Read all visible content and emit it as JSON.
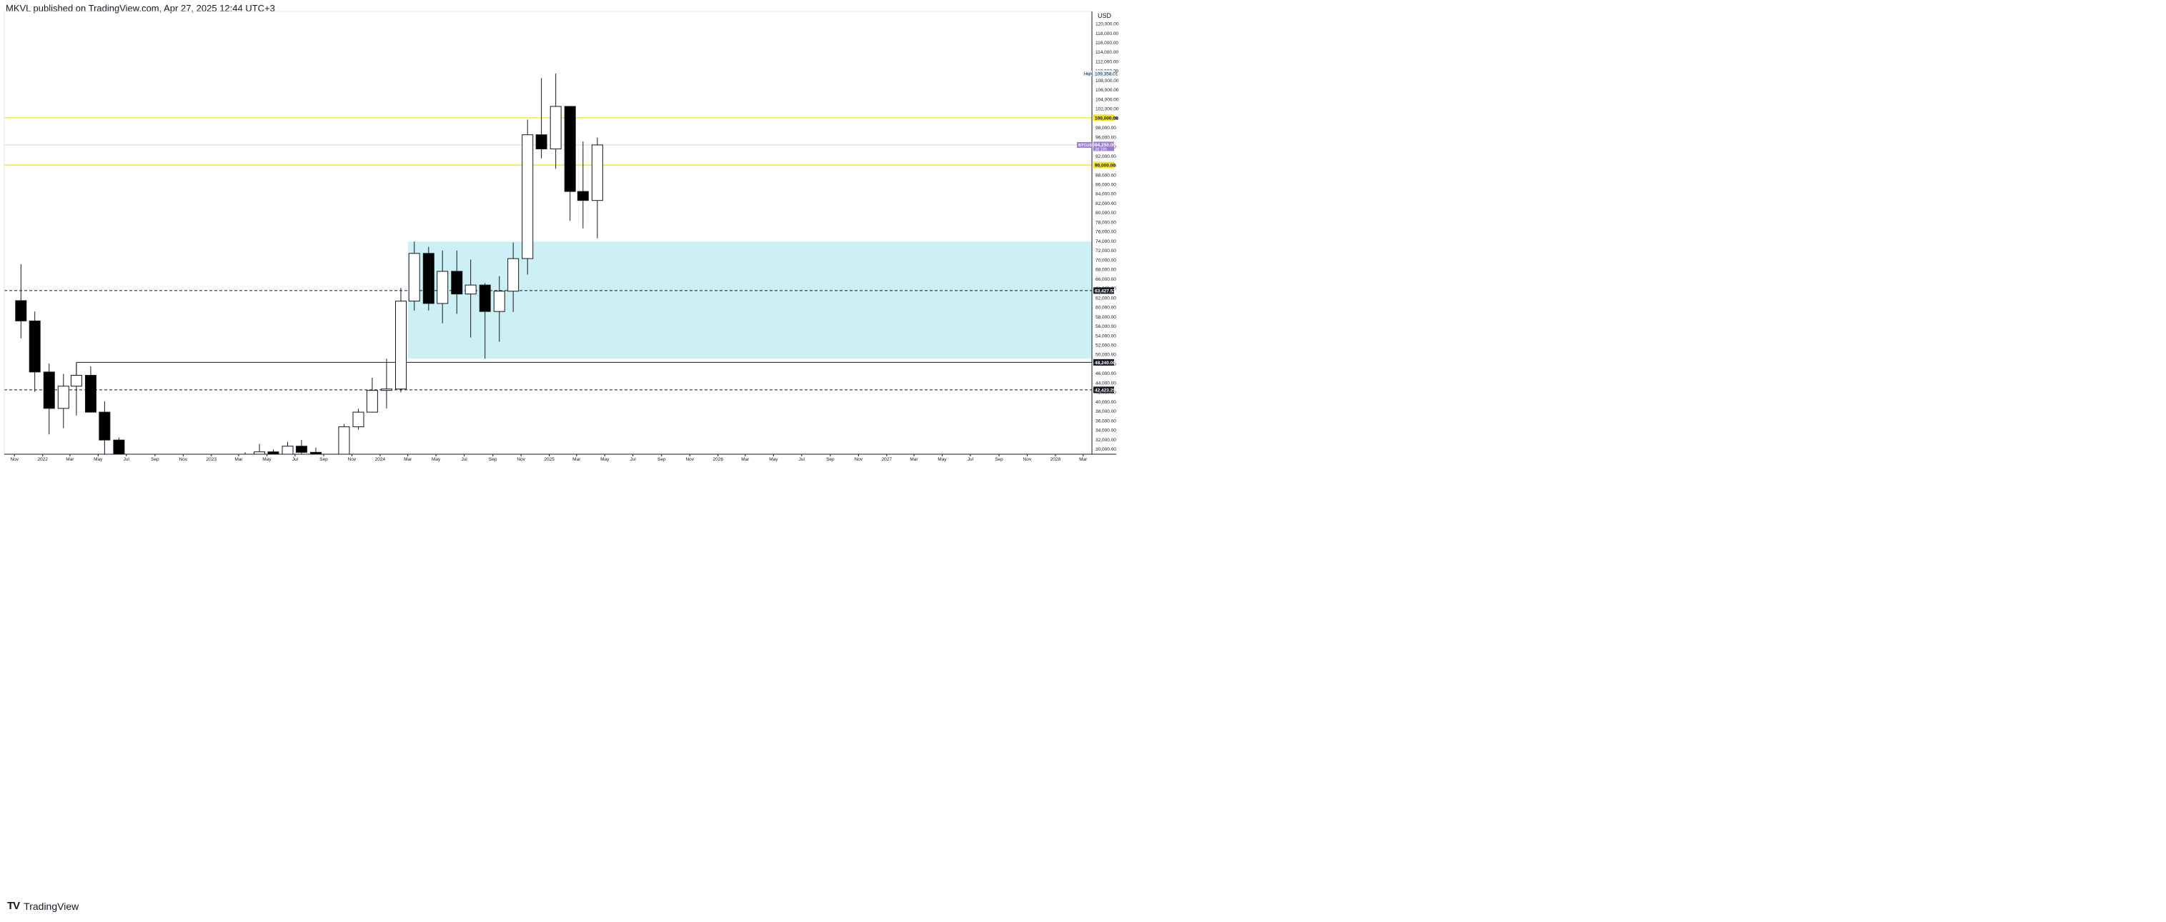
{
  "header": {
    "publisher_line": "MKVL published on TradingView.com, Apr 27, 2025 12:44 UTC+3"
  },
  "footer": {
    "logo_glyph": "TV",
    "brand": "TradingView"
  },
  "chart_data": {
    "type": "candlestick",
    "currency": "USD",
    "y_range": [
      28800,
      122500
    ],
    "x_range": [
      "2021-10-10",
      "2028-03-20"
    ],
    "price_axis_ticks": [
      30000,
      32000,
      34000,
      36000,
      38000,
      40000,
      42000,
      44000,
      46000,
      48000,
      50000,
      52000,
      54000,
      56000,
      58000,
      60000,
      62000,
      64000,
      66000,
      68000,
      70000,
      72000,
      74000,
      76000,
      78000,
      80000,
      82000,
      84000,
      86000,
      88000,
      90000,
      92000,
      94000,
      96000,
      98000,
      100000,
      102000,
      104000,
      106000,
      108000,
      110000,
      112000,
      114000,
      116000,
      118000,
      120000
    ],
    "time_axis_ticks": [
      {
        "date": "2021-11-01",
        "label": "Nov"
      },
      {
        "date": "2022-01-01",
        "label": "2022"
      },
      {
        "date": "2022-03-01",
        "label": "Mar"
      },
      {
        "date": "2022-05-01",
        "label": "May"
      },
      {
        "date": "2022-07-01",
        "label": "Jul"
      },
      {
        "date": "2022-09-01",
        "label": "Sep"
      },
      {
        "date": "2022-11-01",
        "label": "Nov"
      },
      {
        "date": "2023-01-01",
        "label": "2023"
      },
      {
        "date": "2023-03-01",
        "label": "Mar"
      },
      {
        "date": "2023-05-01",
        "label": "May"
      },
      {
        "date": "2023-07-01",
        "label": "Jul"
      },
      {
        "date": "2023-09-01",
        "label": "Sep"
      },
      {
        "date": "2023-11-01",
        "label": "Nov"
      },
      {
        "date": "2024-01-01",
        "label": "2024"
      },
      {
        "date": "2024-03-01",
        "label": "Mar"
      },
      {
        "date": "2024-05-01",
        "label": "May"
      },
      {
        "date": "2024-07-01",
        "label": "Jul"
      },
      {
        "date": "2024-09-01",
        "label": "Sep"
      },
      {
        "date": "2024-11-01",
        "label": "Nov"
      },
      {
        "date": "2025-01-01",
        "label": "2025"
      },
      {
        "date": "2025-03-01",
        "label": "Mar"
      },
      {
        "date": "2025-05-01",
        "label": "May"
      },
      {
        "date": "2025-07-01",
        "label": "Jul"
      },
      {
        "date": "2025-09-01",
        "label": "Sep"
      },
      {
        "date": "2025-11-01",
        "label": "Nov"
      },
      {
        "date": "2026-01-01",
        "label": "2026"
      },
      {
        "date": "2026-03-01",
        "label": "Mar"
      },
      {
        "date": "2026-05-01",
        "label": "May"
      },
      {
        "date": "2026-07-01",
        "label": "Jul"
      },
      {
        "date": "2026-09-01",
        "label": "Sep"
      },
      {
        "date": "2026-11-01",
        "label": "Nov"
      },
      {
        "date": "2027-01-01",
        "label": "2027"
      },
      {
        "date": "2027-03-01",
        "label": "Mar"
      },
      {
        "date": "2027-05-01",
        "label": "May"
      },
      {
        "date": "2027-07-01",
        "label": "Jul"
      },
      {
        "date": "2027-09-01",
        "label": "Sep"
      },
      {
        "date": "2027-11-01",
        "label": "Nov"
      },
      {
        "date": "2028-01-01",
        "label": "2028"
      },
      {
        "date": "2028-03-01",
        "label": "Mar"
      }
    ],
    "candles": [
      {
        "date": "2021-11-15",
        "open": 61300,
        "high": 69000,
        "low": 53300,
        "close": 57000
      },
      {
        "date": "2021-12-15",
        "open": 57000,
        "high": 59000,
        "low": 42000,
        "close": 46200
      },
      {
        "date": "2022-01-15",
        "open": 46200,
        "high": 48000,
        "low": 33000,
        "close": 38500
      },
      {
        "date": "2022-02-15",
        "open": 38500,
        "high": 45800,
        "low": 34300,
        "close": 43200
      },
      {
        "date": "2022-03-15",
        "open": 43200,
        "high": 48200,
        "low": 37000,
        "close": 45500
      },
      {
        "date": "2022-04-15",
        "open": 45500,
        "high": 47400,
        "low": 37700,
        "close": 37700
      },
      {
        "date": "2022-05-15",
        "open": 37700,
        "high": 40000,
        "low": 26700,
        "close": 31800
      },
      {
        "date": "2022-06-15",
        "open": 31800,
        "high": 32300,
        "low": 17600,
        "close": 19800
      },
      {
        "date": "2023-03-15",
        "open": 28000,
        "high": 29200,
        "low": 25000,
        "close": 28500
      },
      {
        "date": "2023-04-15",
        "open": 28500,
        "high": 31000,
        "low": 26900,
        "close": 29300
      },
      {
        "date": "2023-05-15",
        "open": 29300,
        "high": 29800,
        "low": 25800,
        "close": 27200
      },
      {
        "date": "2023-06-15",
        "open": 27200,
        "high": 31400,
        "low": 24800,
        "close": 30500
      },
      {
        "date": "2023-07-15",
        "open": 30500,
        "high": 31800,
        "low": 28900,
        "close": 29200
      },
      {
        "date": "2023-08-15",
        "open": 29200,
        "high": 30200,
        "low": 25400,
        "close": 26000
      },
      {
        "date": "2023-10-15",
        "open": 27000,
        "high": 35200,
        "low": 26500,
        "close": 34600
      },
      {
        "date": "2023-11-15",
        "open": 34600,
        "high": 38400,
        "low": 34000,
        "close": 37700
      },
      {
        "date": "2023-12-15",
        "open": 37700,
        "high": 45000,
        "low": 37600,
        "close": 42300
      },
      {
        "date": "2024-01-15",
        "open": 42300,
        "high": 49000,
        "low": 38500,
        "close": 42600
      },
      {
        "date": "2024-02-15",
        "open": 42600,
        "high": 64000,
        "low": 41900,
        "close": 61200
      },
      {
        "date": "2024-03-15",
        "open": 61200,
        "high": 73800,
        "low": 59200,
        "close": 71300
      },
      {
        "date": "2024-04-15",
        "open": 71300,
        "high": 72700,
        "low": 59200,
        "close": 60700
      },
      {
        "date": "2024-05-15",
        "open": 60700,
        "high": 71900,
        "low": 56500,
        "close": 67500
      },
      {
        "date": "2024-06-15",
        "open": 67500,
        "high": 71900,
        "low": 58500,
        "close": 62700
      },
      {
        "date": "2024-07-15",
        "open": 62700,
        "high": 70000,
        "low": 53500,
        "close": 64600
      },
      {
        "date": "2024-08-15",
        "open": 64600,
        "high": 65000,
        "low": 49000,
        "close": 59000
      },
      {
        "date": "2024-09-15",
        "open": 59000,
        "high": 66500,
        "low": 52600,
        "close": 63300
      },
      {
        "date": "2024-10-15",
        "open": 63300,
        "high": 73600,
        "low": 58900,
        "close": 70200
      },
      {
        "date": "2024-11-15",
        "open": 70200,
        "high": 99600,
        "low": 66800,
        "close": 96400
      },
      {
        "date": "2024-12-15",
        "open": 96400,
        "high": 108400,
        "low": 91400,
        "close": 93400
      },
      {
        "date": "2025-01-15",
        "open": 93400,
        "high": 109358,
        "low": 89200,
        "close": 102400
      },
      {
        "date": "2025-02-15",
        "open": 102400,
        "high": 102500,
        "low": 78200,
        "close": 84400
      },
      {
        "date": "2025-03-15",
        "open": 84400,
        "high": 95000,
        "low": 76600,
        "close": 82500
      },
      {
        "date": "2025-04-15",
        "open": 82500,
        "high": 95800,
        "low": 74500,
        "close": 94250
      }
    ],
    "zone": {
      "from": "2024-03-01",
      "to": "2028-03-20",
      "top": 73800,
      "bottom": 49000,
      "color": "#cdf0f4"
    },
    "horizontal_levels": [
      {
        "price": 100000,
        "style": "solid",
        "color": "#f2e22a",
        "label": "100,000.00",
        "label_bg": "#f2e22a",
        "label_color": "#131722"
      },
      {
        "price": 90000,
        "style": "solid",
        "color": "#f2e22a",
        "label": "90,000.00",
        "label_bg": "#f2e22a",
        "label_color": "#131722"
      },
      {
        "price": 63427.53,
        "style": "dashed",
        "color": "#131722",
        "label": "63,427.53",
        "label_bg": "#131722",
        "label_color": "#ffffff"
      },
      {
        "price": 42423.25,
        "style": "dashed",
        "color": "#131722",
        "label": "42,423.25",
        "label_bg": "#131722",
        "label_color": "#ffffff"
      }
    ],
    "ray_level": {
      "price": 48240,
      "from": "2022-03-15",
      "color": "#131722",
      "label": "48,240.00",
      "label_bg": "#131722",
      "label_color": "#ffffff"
    },
    "current_price": {
      "price": 94250,
      "symbol": "BTCUSD",
      "value_label": "94,250.00",
      "countdown": "3d 19h",
      "color": "#9c7cd8",
      "line_color": "#d8d4e8"
    },
    "high_marker": {
      "price": 109358.01,
      "tag": "High",
      "value_label": "109,358.01",
      "bg": "#e3f2fd"
    }
  }
}
